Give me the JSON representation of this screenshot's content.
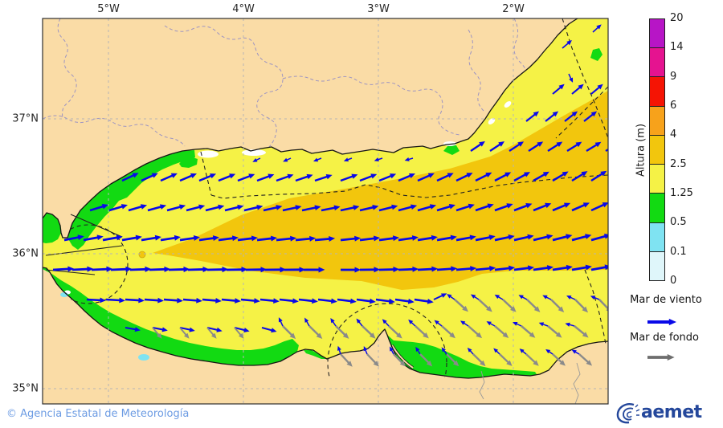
{
  "map": {
    "x_ticks": [
      {
        "label": "5°W",
        "x": 135
      },
      {
        "label": "4°W",
        "x": 303
      },
      {
        "label": "3°W",
        "x": 471
      },
      {
        "label": "2°W",
        "x": 639
      }
    ],
    "y_ticks": [
      {
        "label": "37°N",
        "y": 148
      },
      {
        "label": "36°N",
        "y": 316
      },
      {
        "label": "35°N",
        "y": 484
      }
    ],
    "land_color": "#fadca6",
    "sea_base_color": "#f5f246",
    "grid_color": "#b5b5b5"
  },
  "colorbar": {
    "title": "Altura (m)",
    "levels": [
      "0",
      "0.1",
      "0.5",
      "1.25",
      "2.5",
      "4",
      "6",
      "9",
      "14",
      "20"
    ],
    "colors_bottom_to_top": [
      "#dff6fa",
      "#7fe3f2",
      "#12da12",
      "#f5f246",
      "#f2c60d",
      "#f7a21b",
      "#f51404",
      "#e51390",
      "#b715c6"
    ]
  },
  "legend": {
    "wind_label": "Mar de viento",
    "swell_label": "Mar de fondo",
    "wind_color": "#0909e8",
    "swell_color": "#8a8a8a",
    "legend_swell_color": "#6e6e6e"
  },
  "footer": {
    "copyright": "© Agencia Estatal de Meteorología",
    "logo_text": "aemet"
  },
  "arrows": {
    "note": "a0/a1 = direction in degrees (0=east, positive CCW/up), interpolated from x0 to x1; t: w=wind sea (blue), s=swell (gray)",
    "rows": [
      {
        "t": "w",
        "y": 40,
        "x0": 738,
        "x1": 738,
        "dx": 24,
        "a0": 42,
        "a1": 42,
        "s": 0.6
      },
      {
        "t": "w",
        "y": 60,
        "x0": 700,
        "x1": 700,
        "dx": 24,
        "a0": 40,
        "a1": 40,
        "s": 0.65
      },
      {
        "t": "w",
        "y": 92,
        "x0": 708,
        "x1": 708,
        "dx": 24,
        "a0": -65,
        "a1": -65,
        "s": 0.5
      },
      {
        "t": "w",
        "y": 117,
        "x0": 688,
        "x1": 736,
        "dx": 24,
        "a0": 40,
        "a1": 40,
        "s": 0.8
      },
      {
        "t": "w",
        "y": 151,
        "x0": 655,
        "x1": 727,
        "dx": 24,
        "a0": 38,
        "a1": 38,
        "s": 0.85
      },
      {
        "t": "w",
        "y": 188,
        "x0": 586,
        "x1": 754,
        "dx": 24,
        "a0": 34,
        "a1": 31,
        "s": 0.9
      },
      {
        "t": "w",
        "y": 197,
        "x0": 324,
        "x1": 514,
        "dx": 38,
        "a0": 206,
        "a1": 196,
        "s": 0.45
      },
      {
        "t": "w",
        "y": 225,
        "x0": 152,
        "x1": 400,
        "dx": 24,
        "a0": 25,
        "a1": 18,
        "s": 0.95
      },
      {
        "t": "w",
        "y": 225,
        "x0": 424,
        "x1": 752,
        "dx": 24,
        "a0": 20,
        "a1": 33,
        "s": 0.95
      },
      {
        "t": "w",
        "y": 262,
        "x0": 112,
        "x1": 400,
        "dx": 24,
        "a0": 17,
        "a1": 11,
        "s": 1
      },
      {
        "t": "w",
        "y": 262,
        "x0": 424,
        "x1": 752,
        "dx": 24,
        "a0": 12,
        "a1": 25,
        "s": 1
      },
      {
        "t": "w",
        "y": 299,
        "x0": 80,
        "x1": 400,
        "dx": 24,
        "a0": 11,
        "a1": 5,
        "s": 1.05
      },
      {
        "t": "w",
        "y": 299,
        "x0": 424,
        "x1": 752,
        "dx": 24,
        "a0": 6,
        "a1": 16,
        "s": 1.05
      },
      {
        "t": "w",
        "y": 336,
        "x0": 66,
        "x1": 400,
        "dx": 24,
        "a0": 3,
        "a1": 0,
        "s": 1.1
      },
      {
        "t": "w",
        "y": 336,
        "x0": 424,
        "x1": 752,
        "dx": 24,
        "a0": 0,
        "a1": 11,
        "s": 1.05
      },
      {
        "t": "w",
        "y": 373,
        "x0": 108,
        "x1": 516,
        "dx": 24,
        "a0": -3,
        "a1": -8,
        "s": 1
      },
      {
        "t": "w",
        "y": 373,
        "x0": 540,
        "x1": 540,
        "dx": 24,
        "a0": 25,
        "a1": 25,
        "s": 0.75
      },
      {
        "t": "w",
        "y": 373,
        "x0": 566,
        "x1": 746,
        "dx": 30,
        "a0": 145,
        "a1": 158,
        "s": 0.5
      },
      {
        "t": "s",
        "y": 373,
        "x0": 566,
        "x1": 746,
        "dx": 30,
        "a0": -42,
        "a1": -46,
        "s": 0.95
      },
      {
        "t": "w",
        "y": 408,
        "x0": 156,
        "x1": 326,
        "dx": 34,
        "a0": -10,
        "a1": -15,
        "s": 0.8
      },
      {
        "t": "s",
        "y": 408,
        "x0": 190,
        "x1": 292,
        "dx": 34,
        "a0": -50,
        "a1": -50,
        "s": 0.75
      },
      {
        "t": "w",
        "y": 406,
        "x0": 352,
        "x1": 742,
        "dx": 33,
        "a0": 115,
        "a1": 168,
        "s": 0.5
      },
      {
        "t": "s",
        "y": 406,
        "x0": 352,
        "x1": 742,
        "dx": 33,
        "a0": -45,
        "a1": -39,
        "s": 0.95
      },
      {
        "t": "w",
        "y": 441,
        "x0": 424,
        "x1": 721,
        "dx": 33,
        "a0": 108,
        "a1": 150,
        "s": 0.45
      },
      {
        "t": "s",
        "y": 441,
        "x0": 424,
        "x1": 721,
        "dx": 33,
        "a0": -47,
        "a1": -42,
        "s": 0.9
      }
    ]
  }
}
